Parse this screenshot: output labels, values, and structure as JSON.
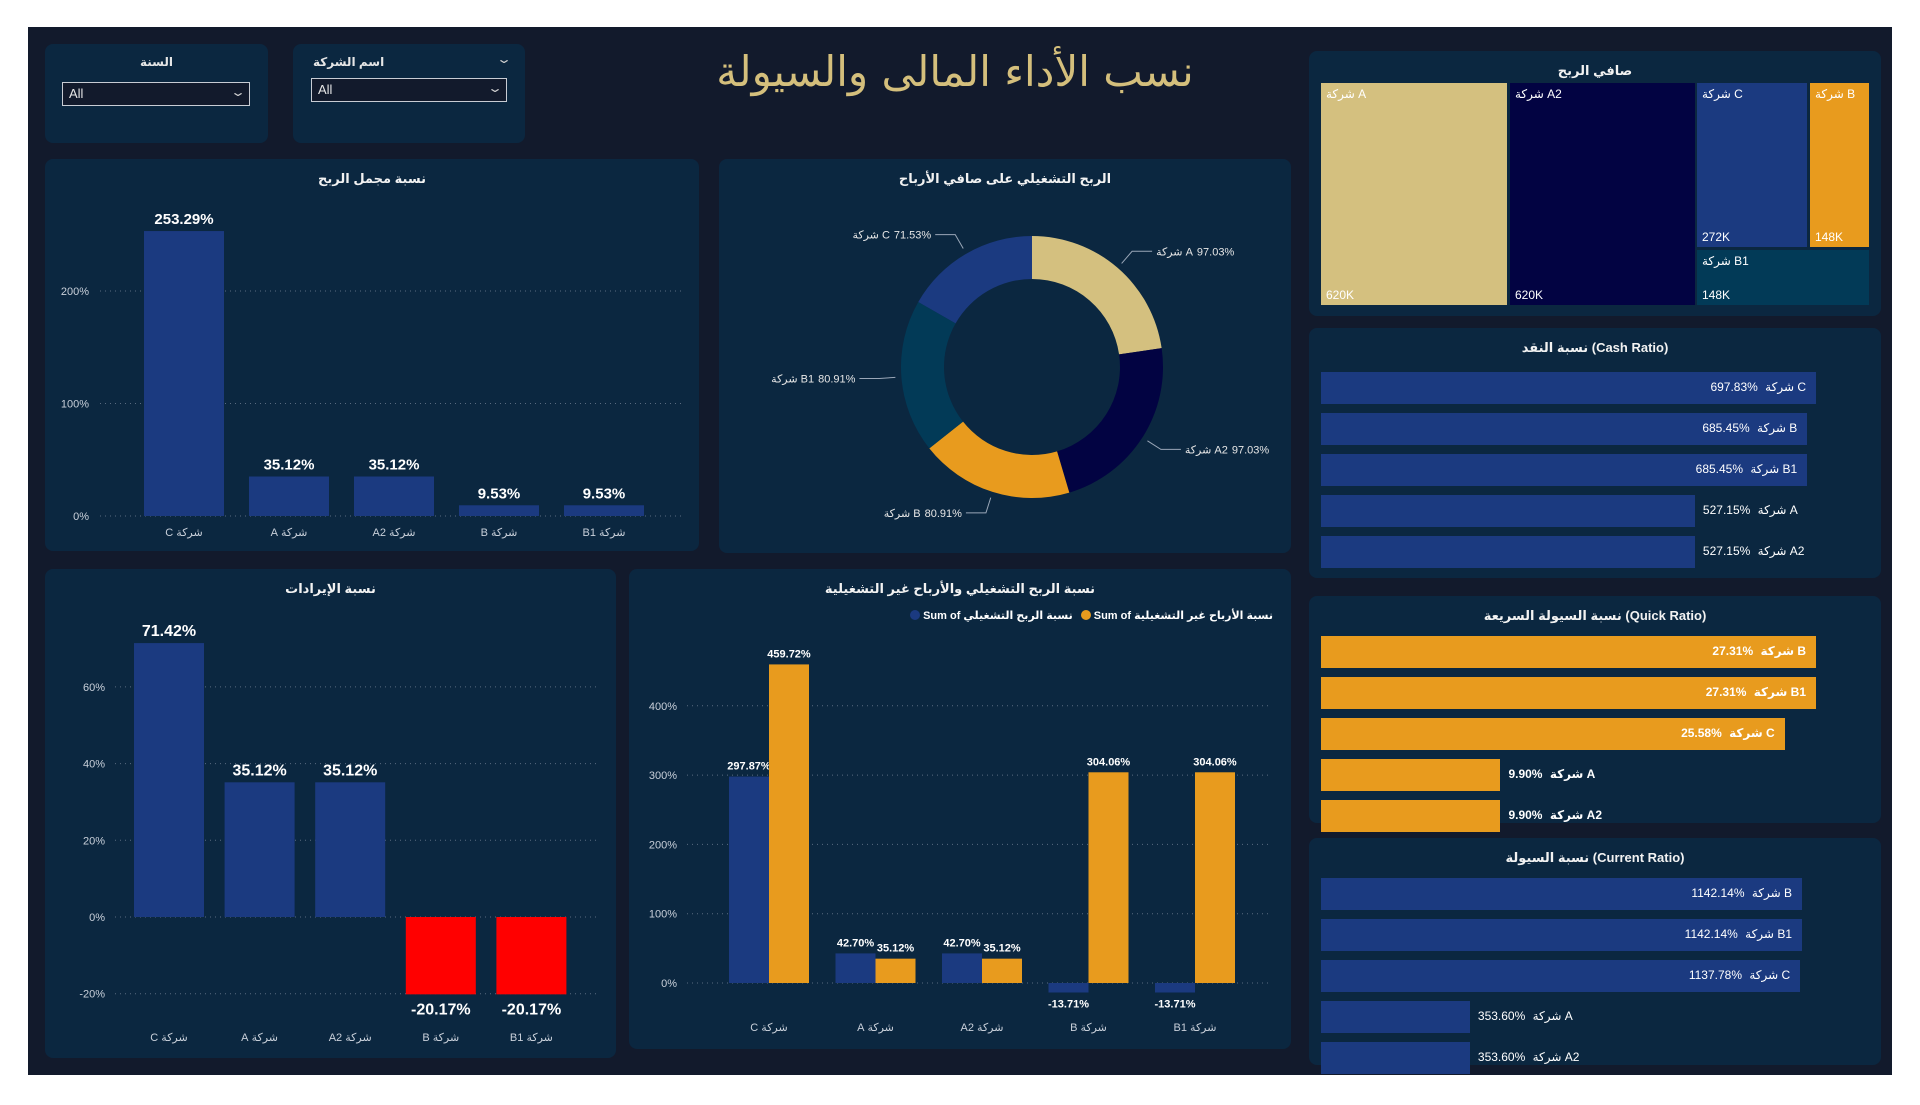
{
  "title": "نسب الأداء المالى والسيولة",
  "filters": {
    "year": {
      "label": "السنة",
      "value": "All"
    },
    "company": {
      "label": "اسم الشركة",
      "value": "All"
    }
  },
  "colors": {
    "blue": "#1b3a80",
    "orange": "#e89b1e",
    "gold": "#d4c07f",
    "navy": "#020342",
    "teal": "#023a57",
    "red": "#ff0000"
  },
  "chart_data": [
    {
      "id": "gross_profit",
      "type": "bar",
      "title": "نسبة مجمل الربح",
      "categories": [
        "شركة C",
        "شركة A",
        "شركة A2",
        "شركة B",
        "شركة B1"
      ],
      "values": [
        253.29,
        35.12,
        35.12,
        9.53,
        9.53
      ],
      "labels": [
        "253.29%",
        "35.12%",
        "35.12%",
        "9.53%",
        "9.53%"
      ],
      "ticks": [
        0,
        100,
        200
      ],
      "tick_labels": [
        "0%",
        "100%",
        "200%"
      ],
      "ylim": [
        0,
        260
      ]
    },
    {
      "id": "operating_on_net",
      "type": "pie",
      "title": "الربح التشغيلي على صافي الأرباح",
      "categories": [
        "شركة A",
        "شركة A2",
        "شركة B",
        "شركة B1",
        "شركة C"
      ],
      "values": [
        97.03,
        97.03,
        80.91,
        80.91,
        71.53
      ],
      "labels": [
        "97.03%",
        "97.03%",
        "80.91%",
        "80.91%",
        "71.53%"
      ],
      "slice_colors": [
        "#d4c07f",
        "#020342",
        "#e89b1e",
        "#023a57",
        "#1b3a80"
      ]
    },
    {
      "id": "net_profit",
      "type": "treemap",
      "title": "صافي الربح",
      "categories": [
        "شركة A",
        "شركة A2",
        "شركة C",
        "شركة B",
        "شركة B1"
      ],
      "values": [
        "620K",
        "620K",
        "272K",
        "148K",
        "148K"
      ]
    },
    {
      "id": "cash_ratio",
      "type": "bar",
      "orientation": "horizontal",
      "title": "نسبة النقد (Cash Ratio)",
      "categories": [
        "شركة C",
        "شركة B",
        "شركة B1",
        "شركة A",
        "شركة A2"
      ],
      "values": [
        697.83,
        685.45,
        685.45,
        527.15,
        527.15
      ],
      "labels": [
        "697.83%",
        "685.45%",
        "685.45%",
        "527.15%",
        "527.15%"
      ]
    },
    {
      "id": "revenue",
      "type": "bar",
      "title": "نسبة الإيرادات",
      "categories": [
        "شركة C",
        "شركة A",
        "شركة A2",
        "شركة B",
        "شركة B1"
      ],
      "values": [
        71.42,
        35.12,
        35.12,
        -20.17,
        -20.17
      ],
      "labels": [
        "71.42%",
        "35.12%",
        "35.12%",
        "-20.17%",
        "-20.17%"
      ],
      "ticks": [
        -20,
        0,
        20,
        40,
        60
      ],
      "tick_labels": [
        "-20%",
        "0%",
        "20%",
        "40%",
        "60%"
      ],
      "ylim": [
        -20,
        75
      ]
    },
    {
      "id": "operating_vs_nonoperating",
      "type": "bar",
      "title": "نسبة الربح التشغيلي والأرباح غير التشغيلية",
      "categories": [
        "شركة C",
        "شركة A",
        "شركة A2",
        "شركة B",
        "شركة B1"
      ],
      "series": [
        {
          "name": "Sum of نسبة الربح التشغيلي",
          "values": [
            297.87,
            42.7,
            42.7,
            -13.71,
            -13.71
          ],
          "labels": [
            "297.87%",
            "42.70%",
            "42.70%",
            "-13.71%",
            "-13.71%"
          ]
        },
        {
          "name": "Sum of نسبة الأرباح غير التشغيلية",
          "values": [
            459.72,
            35.12,
            35.12,
            304.06,
            304.06
          ],
          "labels": [
            "459.72%",
            "35.12%",
            "35.12%",
            "304.06%",
            "304.06%"
          ]
        }
      ],
      "legend_position": "top-right",
      "ticks": [
        0,
        100,
        200,
        300,
        400
      ],
      "tick_labels": [
        "0%",
        "100%",
        "200%",
        "300%",
        "400%"
      ],
      "ylim": [
        -20,
        470
      ]
    },
    {
      "id": "quick_ratio",
      "type": "bar",
      "orientation": "horizontal",
      "title": "نسبة السيولة السريعة (Quick Ratio)",
      "categories": [
        "شركة B",
        "شركة B1",
        "شركة C",
        "شركة A",
        "شركة A2"
      ],
      "values": [
        27.31,
        27.31,
        25.58,
        9.9,
        9.9
      ],
      "labels": [
        "27.31%",
        "27.31%",
        "25.58%",
        "9.90%",
        "9.90%"
      ]
    },
    {
      "id": "current_ratio",
      "type": "bar",
      "orientation": "horizontal",
      "title": "نسبة السيولة (Current Ratio)",
      "categories": [
        "شركة B",
        "شركة B1",
        "شركة C",
        "شركة A",
        "شركة A2"
      ],
      "values": [
        1142.14,
        1142.14,
        1137.78,
        353.6,
        353.6
      ],
      "labels": [
        "1142.14%",
        "1142.14%",
        "1137.78%",
        "353.60%",
        "353.60%"
      ]
    }
  ]
}
